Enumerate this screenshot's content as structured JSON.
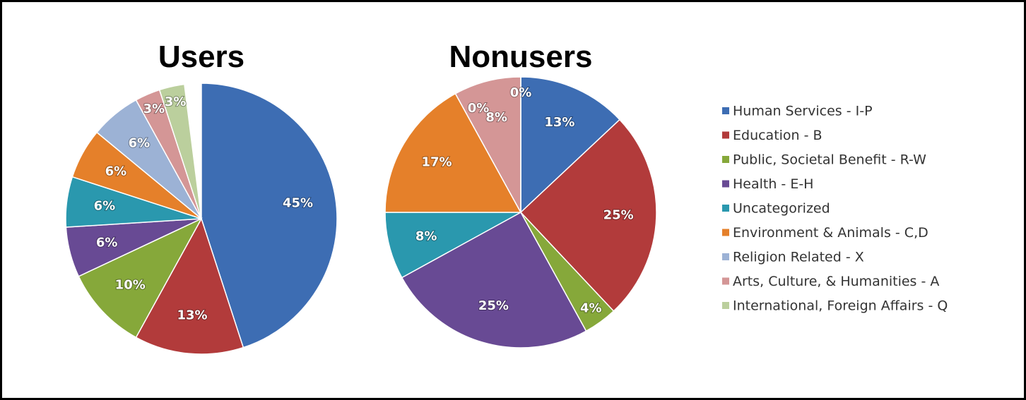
{
  "chart_data": [
    {
      "type": "pie",
      "title": "Users",
      "values": [
        45,
        13,
        10,
        6,
        6,
        6,
        6,
        3,
        3
      ],
      "value_labels": [
        "45%",
        "13%",
        "10%",
        "6%",
        "6%",
        "6%",
        "6%",
        "3%",
        "3%"
      ]
    },
    {
      "type": "pie",
      "title": "Nonusers",
      "values": [
        13,
        25,
        4,
        25,
        8,
        17,
        0,
        8,
        0
      ],
      "value_labels": [
        "13%",
        "25%",
        "4%",
        "25%",
        "8%",
        "17%",
        "0%",
        "8%",
        "0%"
      ]
    }
  ],
  "legend": {
    "labels": [
      "Human Services - I-P",
      "Education - B",
      "Public, Societal Benefit - R-W",
      "Health - E-H",
      "Uncategorized",
      "Environment & Animals - C,D",
      "Religion Related - X",
      "Arts, Culture, & Humanities - A",
      "International, Foreign Affairs - Q"
    ],
    "colors": [
      "#3d6db3",
      "#b23b3b",
      "#86a83a",
      "#684a94",
      "#2a98ae",
      "#e5802a",
      "#9cb2d5",
      "#d49696",
      "#bbcf9d"
    ]
  }
}
